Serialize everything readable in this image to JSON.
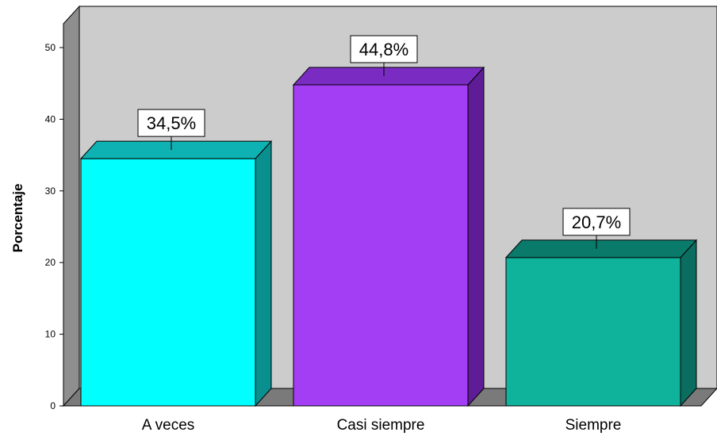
{
  "chart_data": {
    "type": "bar",
    "categories": [
      "A veces",
      "Casi siempre",
      "Siempre"
    ],
    "values": [
      34.5,
      44.8,
      20.7
    ],
    "data_labels": [
      "34,5%",
      "44,8%",
      "20,7%"
    ],
    "title": "",
    "xlabel": "",
    "ylabel": "Porcentaje",
    "ylim": [
      0,
      50
    ],
    "yticks": [
      0,
      10,
      20,
      30,
      40,
      50
    ],
    "grid": false,
    "legend": "none",
    "style": "3d",
    "colors": {
      "bars": [
        "#00ffff",
        "#a33ef5",
        "#0fb29a"
      ],
      "bars_side": [
        "#0a8f8f",
        "#5e1c96",
        "#0a6d5f"
      ],
      "bars_top": [
        "#0fb2b2",
        "#7a2cc2",
        "#0a7a6a"
      ],
      "back_wall": "#cccccc",
      "side_wall": "#8e8e8e",
      "floor": "#7a7a7a"
    }
  }
}
